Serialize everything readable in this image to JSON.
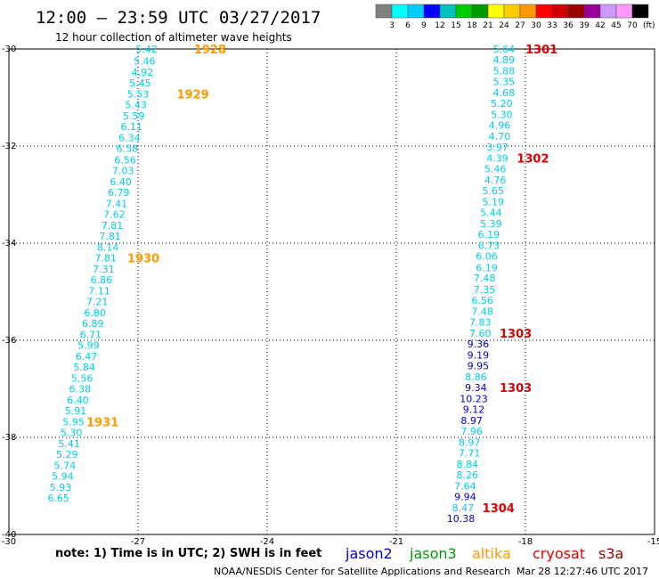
{
  "header": {
    "title": "12:00 – 23:59 UTC 03/27/2017",
    "subtitle": "12 hour collection of altimeter wave heights"
  },
  "colorbar": {
    "colors": [
      "#808080",
      "#00ffff",
      "#00ccff",
      "#0000ff",
      "#00c0c0",
      "#00cc00",
      "#009900",
      "#ffff00",
      "#ffcc00",
      "#ff9900",
      "#ff0000",
      "#cc0000",
      "#990000",
      "#990099",
      "#cc99ff",
      "#ff99ff",
      "#000000"
    ],
    "labels": [
      "3",
      "6",
      "9",
      "12",
      "15",
      "18",
      "21",
      "24",
      "27",
      "30",
      "33",
      "36",
      "39",
      "42",
      "45",
      "70"
    ],
    "unit": "(ft)"
  },
  "footer": {
    "note": "note:  1) Time is in UTC;  2) SWH is in feet",
    "credit": "NOAA/NESDIS Center for Satellite Applications and Research",
    "timestamp": "Mar 28 12:27:46 UTC 2017",
    "satellites": [
      {
        "name": "jason2",
        "color": "#0000dd"
      },
      {
        "name": "jason3",
        "color": "#009900"
      },
      {
        "name": "altika",
        "color": "#ff9900"
      },
      {
        "name": "cryosat",
        "color": "#dd0000"
      },
      {
        "name": "s3a",
        "color": "#990000"
      }
    ]
  },
  "chart_data": {
    "type": "scatter",
    "xlim": [
      -30,
      -15
    ],
    "ylim": [
      -40,
      -30
    ],
    "x_ticks": [
      -30,
      -27,
      -24,
      -21,
      -18,
      -15
    ],
    "y_ticks": [
      -30,
      -32,
      -34,
      -36,
      -38,
      -40
    ],
    "x_tick_labels": [
      "-30",
      "-27",
      "-24",
      "-21",
      "-18",
      "-15"
    ],
    "y_tick_labels": [
      "-30",
      "-32",
      "-34",
      "-36",
      "-38",
      "-40"
    ],
    "grid": true,
    "colors": {
      "cyan": "#00ccee",
      "blue": "#0000cc",
      "orange": "#ff9900",
      "red": "#dd0000"
    },
    "tracks": [
      {
        "color": "cyan",
        "points": [
          {
            "lon": -26.8,
            "lat": -30.0,
            "v": "5.42"
          },
          {
            "lon": -26.85,
            "lat": -30.25,
            "v": "5.46"
          },
          {
            "lon": -26.9,
            "lat": -30.48,
            "v": "4.92"
          },
          {
            "lon": -26.95,
            "lat": -30.7,
            "v": "5.45"
          },
          {
            "lon": -27.0,
            "lat": -30.93,
            "v": "5.53"
          },
          {
            "lon": -27.05,
            "lat": -31.15,
            "v": "5.43"
          },
          {
            "lon": -27.1,
            "lat": -31.38,
            "v": "5.59"
          },
          {
            "lon": -27.15,
            "lat": -31.6,
            "v": "6.11"
          },
          {
            "lon": -27.2,
            "lat": -31.83,
            "v": "6.34"
          },
          {
            "lon": -27.25,
            "lat": -32.05,
            "v": "6.58"
          },
          {
            "lon": -27.3,
            "lat": -32.28,
            "v": "6.56"
          },
          {
            "lon": -27.35,
            "lat": -32.5,
            "v": "7.03"
          },
          {
            "lon": -27.4,
            "lat": -32.73,
            "v": "6.40"
          },
          {
            "lon": -27.45,
            "lat": -32.95,
            "v": "6.79"
          },
          {
            "lon": -27.5,
            "lat": -33.18,
            "v": "7.41"
          },
          {
            "lon": -27.55,
            "lat": -33.4,
            "v": "7.62"
          },
          {
            "lon": -27.6,
            "lat": -33.63,
            "v": "7.81"
          },
          {
            "lon": -27.65,
            "lat": -33.85,
            "v": "7.81"
          },
          {
            "lon": -27.7,
            "lat": -34.08,
            "v": "8.14"
          },
          {
            "lon": -27.75,
            "lat": -34.3,
            "v": "7.81"
          },
          {
            "lon": -27.8,
            "lat": -34.53,
            "v": "7.31"
          },
          {
            "lon": -27.85,
            "lat": -34.75,
            "v": "6.86"
          },
          {
            "lon": -27.9,
            "lat": -34.98,
            "v": "7.11"
          },
          {
            "lon": -27.95,
            "lat": -35.2,
            "v": "7.21"
          },
          {
            "lon": -28.0,
            "lat": -35.43,
            "v": "6.80"
          },
          {
            "lon": -28.05,
            "lat": -35.65,
            "v": "6.89"
          },
          {
            "lon": -28.1,
            "lat": -35.88,
            "v": "6.71"
          },
          {
            "lon": -28.15,
            "lat": -36.1,
            "v": "5.99"
          },
          {
            "lon": -28.2,
            "lat": -36.33,
            "v": "6.47"
          },
          {
            "lon": -28.25,
            "lat": -36.55,
            "v": "5.84"
          },
          {
            "lon": -28.3,
            "lat": -36.78,
            "v": "5.56"
          },
          {
            "lon": -28.35,
            "lat": -37.0,
            "v": "6.38"
          },
          {
            "lon": -28.4,
            "lat": -37.23,
            "v": "6.40"
          },
          {
            "lon": -28.45,
            "lat": -37.45,
            "v": "5.91"
          },
          {
            "lon": -28.5,
            "lat": -37.68,
            "v": "5.95"
          },
          {
            "lon": -28.55,
            "lat": -37.9,
            "v": "5.30"
          },
          {
            "lon": -28.6,
            "lat": -38.13,
            "v": "5.41"
          },
          {
            "lon": -28.65,
            "lat": -38.35,
            "v": "5.29"
          },
          {
            "lon": -28.7,
            "lat": -38.58,
            "v": "5.74"
          },
          {
            "lon": -28.75,
            "lat": -38.8,
            "v": "5.94"
          },
          {
            "lon": -28.8,
            "lat": -39.03,
            "v": "5.93"
          },
          {
            "lon": -28.85,
            "lat": -39.25,
            "v": "6.65"
          }
        ]
      },
      {
        "color": "cyan",
        "points": [
          {
            "lon": -18.5,
            "lat": -30.0,
            "v": "5.64"
          },
          {
            "lon": -18.5,
            "lat": -30.22,
            "v": "4.89"
          },
          {
            "lon": -18.5,
            "lat": -30.45,
            "v": "5.88"
          },
          {
            "lon": -18.5,
            "lat": -30.67,
            "v": "5.35"
          },
          {
            "lon": -18.5,
            "lat": -30.9,
            "v": "4.68"
          },
          {
            "lon": -18.55,
            "lat": -31.12,
            "v": "5.20"
          },
          {
            "lon": -18.55,
            "lat": -31.35,
            "v": "5.30"
          },
          {
            "lon": -18.6,
            "lat": -31.57,
            "v": "4.96"
          },
          {
            "lon": -18.6,
            "lat": -31.8,
            "v": "4.70"
          },
          {
            "lon": -18.65,
            "lat": -32.02,
            "v": "3.97"
          },
          {
            "lon": -18.65,
            "lat": -32.25,
            "v": "4.39"
          },
          {
            "lon": -18.7,
            "lat": -32.47,
            "v": "5.46"
          },
          {
            "lon": -18.7,
            "lat": -32.7,
            "v": "4.76"
          },
          {
            "lon": -18.75,
            "lat": -32.92,
            "v": "5.65"
          },
          {
            "lon": -18.75,
            "lat": -33.15,
            "v": "5.19"
          },
          {
            "lon": -18.8,
            "lat": -33.37,
            "v": "5.44"
          },
          {
            "lon": -18.8,
            "lat": -33.6,
            "v": "5.39"
          },
          {
            "lon": -18.85,
            "lat": -33.82,
            "v": "6.19"
          },
          {
            "lon": -18.85,
            "lat": -34.05,
            "v": "6.73"
          },
          {
            "lon": -18.9,
            "lat": -34.27,
            "v": "6.06"
          },
          {
            "lon": -18.9,
            "lat": -34.5,
            "v": "6.19"
          },
          {
            "lon": -18.95,
            "lat": -34.72,
            "v": "7.48"
          },
          {
            "lon": -18.95,
            "lat": -34.95,
            "v": "7.35"
          },
          {
            "lon": -19.0,
            "lat": -35.17,
            "v": "6.56"
          },
          {
            "lon": -19.0,
            "lat": -35.4,
            "v": "7.48"
          },
          {
            "lon": -19.05,
            "lat": -35.62,
            "v": "7.83"
          },
          {
            "lon": -19.05,
            "lat": -35.85,
            "v": "7.60"
          }
        ]
      },
      {
        "color": "blue",
        "points": [
          {
            "lon": -19.1,
            "lat": -36.07,
            "v": "9.36"
          },
          {
            "lon": -19.1,
            "lat": -36.3,
            "v": "9.19"
          },
          {
            "lon": -19.1,
            "lat": -36.52,
            "v": "9.95"
          },
          {
            "lon": -19.15,
            "lat": -36.75,
            "v": "8.86"
          },
          {
            "lon": -19.15,
            "lat": -36.97,
            "v": "9.34"
          },
          {
            "lon": -19.2,
            "lat": -37.2,
            "v": "10.23"
          },
          {
            "lon": -19.2,
            "lat": -37.42,
            "v": "9.12"
          },
          {
            "lon": -19.25,
            "lat": -37.65,
            "v": "8.97"
          },
          {
            "lon": -19.25,
            "lat": -37.87,
            "v": "7.96"
          },
          {
            "lon": -19.3,
            "lat": -38.1,
            "v": "8.97"
          },
          {
            "lon": -19.3,
            "lat": -38.32,
            "v": "7.71"
          },
          {
            "lon": -19.35,
            "lat": -38.55,
            "v": "8.84"
          },
          {
            "lon": -19.35,
            "lat": -38.77,
            "v": "8.26"
          },
          {
            "lon": -19.4,
            "lat": -39.0,
            "v": "7.64"
          },
          {
            "lon": -19.4,
            "lat": -39.22,
            "v": "9.94"
          },
          {
            "lon": -19.45,
            "lat": -39.45,
            "v": "8.47"
          },
          {
            "lon": -19.5,
            "lat": -39.67,
            "v": "10.38"
          }
        ]
      }
    ],
    "color_overrides": [
      {
        "track": 1,
        "index": 26,
        "color": "cyan"
      },
      {
        "track": 2,
        "index": 3,
        "color": "cyan"
      },
      {
        "track": 2,
        "index": 8,
        "color": "cyan"
      },
      {
        "track": 2,
        "index": 9,
        "color": "cyan"
      },
      {
        "track": 2,
        "index": 10,
        "color": "cyan"
      },
      {
        "track": 2,
        "index": 11,
        "color": "cyan"
      },
      {
        "track": 2,
        "index": 12,
        "color": "cyan"
      },
      {
        "track": 2,
        "index": 13,
        "color": "cyan"
      },
      {
        "track": 2,
        "index": 15,
        "color": "cyan"
      }
    ],
    "time_labels": [
      {
        "lon": -25.7,
        "lat": -30.0,
        "t": "1928",
        "color": "orange"
      },
      {
        "lon": -26.1,
        "lat": -30.93,
        "t": "1929",
        "color": "orange"
      },
      {
        "lon": -27.25,
        "lat": -34.3,
        "t": "1930",
        "color": "orange"
      },
      {
        "lon": -28.2,
        "lat": -37.68,
        "t": "1931",
        "color": "orange"
      },
      {
        "lon": -18.0,
        "lat": -30.0,
        "t": "1301",
        "color": "red"
      },
      {
        "lon": -18.2,
        "lat": -32.25,
        "t": "1302",
        "color": "red"
      },
      {
        "lon": -18.6,
        "lat": -35.85,
        "t": "1303",
        "color": "red"
      },
      {
        "lon": -18.6,
        "lat": -36.97,
        "t": "1303",
        "color": "red"
      },
      {
        "lon": -19.0,
        "lat": -39.45,
        "t": "1304",
        "color": "red"
      }
    ]
  }
}
